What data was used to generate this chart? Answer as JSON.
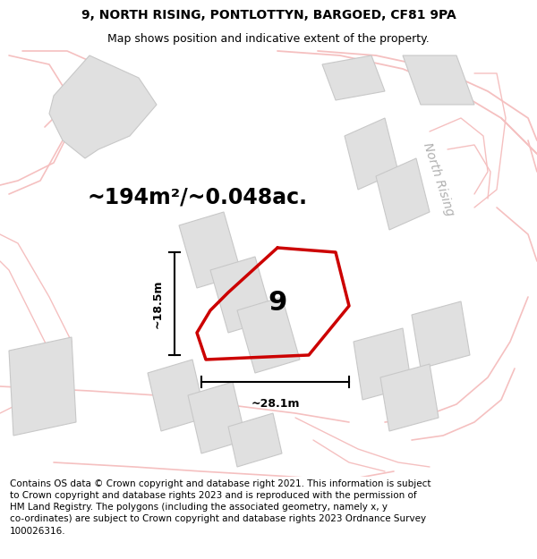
{
  "title_line1": "9, NORTH RISING, PONTLOTTYN, BARGOED, CF81 9PA",
  "title_line2": "Map shows position and indicative extent of the property.",
  "area_text": "~194m²/~0.048ac.",
  "dim_height": "~18.5m",
  "dim_width": "~28.1m",
  "label_number": "9",
  "street_label": "North Rising",
  "footer_text": "Contains OS data © Crown copyright and database right 2021. This information is subject to Crown copyright and database rights 2023 and is reproduced with the permission of HM Land Registry. The polygons (including the associated geometry, namely x, y co-ordinates) are subject to Crown copyright and database rights 2023 Ordnance Survey 100026316.",
  "map_bg": "#f8f8f8",
  "fig_bg": "#ffffff",
  "property_color": "#cc0000",
  "building_fill": "#e0e0e0",
  "building_edge": "#c8c8c8",
  "road_color": "#f5c0c0",
  "road_color2": "#e8a0a0",
  "title_fontsize": 10,
  "subtitle_fontsize": 9,
  "area_fontsize": 17,
  "label_fontsize": 22,
  "footer_fontsize": 7.5,
  "street_fontsize": 10
}
